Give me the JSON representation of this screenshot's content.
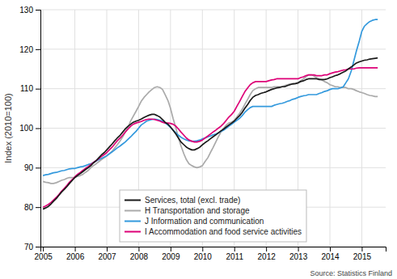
{
  "chart_data": {
    "type": "line",
    "ylabel": "Index (2010=100)",
    "annotations": [
      "Source: Statistics  Finland"
    ],
    "ylim": [
      70,
      130
    ],
    "xlim": [
      2004.92,
      2015.75
    ],
    "yticks": [
      70,
      80,
      90,
      100,
      110,
      120,
      130
    ],
    "xticks": [
      2005,
      2006,
      2007,
      2008,
      2009,
      2010,
      2011,
      2012,
      2013,
      2014,
      2015
    ],
    "grid": true,
    "legend": "bottom",
    "x": [
      2005.0,
      2005.08,
      2005.17,
      2005.25,
      2005.33,
      2005.42,
      2005.5,
      2005.58,
      2005.67,
      2005.75,
      2005.83,
      2005.92,
      2006.0,
      2006.08,
      2006.17,
      2006.25,
      2006.33,
      2006.42,
      2006.5,
      2006.58,
      2006.67,
      2006.75,
      2006.83,
      2006.92,
      2007.0,
      2007.08,
      2007.17,
      2007.25,
      2007.33,
      2007.42,
      2007.5,
      2007.58,
      2007.67,
      2007.75,
      2007.83,
      2007.92,
      2008.0,
      2008.08,
      2008.17,
      2008.25,
      2008.33,
      2008.42,
      2008.5,
      2008.58,
      2008.67,
      2008.75,
      2008.83,
      2008.92,
      2009.0,
      2009.08,
      2009.17,
      2009.25,
      2009.33,
      2009.42,
      2009.5,
      2009.58,
      2009.67,
      2009.75,
      2009.83,
      2009.92,
      2010.0,
      2010.08,
      2010.17,
      2010.25,
      2010.33,
      2010.42,
      2010.5,
      2010.58,
      2010.67,
      2010.75,
      2010.83,
      2010.92,
      2011.0,
      2011.08,
      2011.17,
      2011.25,
      2011.33,
      2011.42,
      2011.5,
      2011.58,
      2011.67,
      2011.75,
      2011.83,
      2011.92,
      2012.0,
      2012.08,
      2012.17,
      2012.25,
      2012.33,
      2012.42,
      2012.5,
      2012.58,
      2012.67,
      2012.75,
      2012.83,
      2012.92,
      2013.0,
      2013.08,
      2013.17,
      2013.25,
      2013.33,
      2013.42,
      2013.5,
      2013.58,
      2013.67,
      2013.75,
      2013.83,
      2013.92,
      2014.0,
      2014.08,
      2014.17,
      2014.25,
      2014.33,
      2014.42,
      2014.5,
      2014.58,
      2014.67,
      2014.75,
      2014.83,
      2014.92,
      2015.0,
      2015.08,
      2015.17,
      2015.25,
      2015.33,
      2015.42,
      2015.5
    ],
    "series": [
      {
        "name": "Services, total  (excl. trade)",
        "color": "#1a1a1a",
        "values": [
          79.5,
          79.8,
          80.2,
          80.8,
          81.5,
          82.2,
          83.0,
          83.8,
          84.5,
          85.2,
          86.0,
          86.8,
          87.5,
          88.0,
          88.5,
          89.0,
          89.5,
          90.0,
          90.5,
          91.2,
          91.8,
          92.5,
          93.2,
          93.8,
          94.5,
          95.2,
          96.0,
          96.8,
          97.5,
          98.2,
          99.0,
          99.8,
          100.5,
          101.0,
          101.5,
          101.8,
          102.0,
          102.3,
          102.7,
          103.0,
          103.3,
          103.5,
          103.5,
          103.2,
          102.8,
          102.2,
          101.5,
          101.0,
          100.3,
          99.5,
          98.5,
          97.5,
          96.5,
          95.8,
          95.2,
          94.8,
          94.5,
          94.5,
          94.8,
          95.2,
          95.8,
          96.3,
          96.8,
          97.3,
          97.8,
          98.3,
          98.8,
          99.3,
          99.8,
          100.3,
          100.8,
          101.3,
          101.8,
          102.5,
          103.2,
          104.0,
          105.0,
          106.0,
          107.0,
          107.8,
          108.3,
          108.5,
          108.8,
          109.0,
          109.2,
          109.5,
          109.8,
          110.0,
          110.2,
          110.3,
          110.5,
          110.5,
          110.8,
          111.0,
          111.2,
          111.3,
          111.5,
          111.8,
          112.0,
          112.3,
          112.5,
          112.5,
          112.5,
          112.5,
          112.3,
          112.3,
          112.3,
          112.5,
          112.8,
          113.0,
          113.3,
          113.5,
          113.8,
          114.2,
          114.5,
          115.0,
          115.5,
          116.0,
          116.5,
          116.8,
          117.0,
          117.2,
          117.3,
          117.5,
          117.6,
          117.7,
          117.8
        ]
      },
      {
        "name": "H Transportation and storage",
        "color": "#aaaaaa",
        "values": [
          86.5,
          86.3,
          86.2,
          86.0,
          86.0,
          86.2,
          86.5,
          86.8,
          87.0,
          87.3,
          87.5,
          87.5,
          87.5,
          87.8,
          88.0,
          88.3,
          88.8,
          89.3,
          90.0,
          90.5,
          91.0,
          91.5,
          92.0,
          92.5,
          93.0,
          93.5,
          94.2,
          95.0,
          95.8,
          96.8,
          97.8,
          99.0,
          100.3,
          101.8,
          103.0,
          104.3,
          105.5,
          106.8,
          107.8,
          108.5,
          109.2,
          109.8,
          110.3,
          110.5,
          110.3,
          109.8,
          108.5,
          107.0,
          105.0,
          102.5,
          100.0,
          97.5,
          95.5,
          93.5,
          92.0,
          91.0,
          90.5,
          90.2,
          90.0,
          90.2,
          90.5,
          91.5,
          92.5,
          93.8,
          95.0,
          96.5,
          97.8,
          99.0,
          100.0,
          100.8,
          101.3,
          101.5,
          102.0,
          102.8,
          103.8,
          104.8,
          106.0,
          107.3,
          108.5,
          109.5,
          110.0,
          110.3,
          110.3,
          110.3,
          110.3,
          110.3,
          110.3,
          110.5,
          110.5,
          110.5,
          110.5,
          110.8,
          111.0,
          111.2,
          111.3,
          111.3,
          111.3,
          112.0,
          112.5,
          113.0,
          113.5,
          113.5,
          113.2,
          112.8,
          112.5,
          112.2,
          111.8,
          111.5,
          111.0,
          110.8,
          110.5,
          110.5,
          110.3,
          110.3,
          110.3,
          110.0,
          110.0,
          109.8,
          109.5,
          109.2,
          109.0,
          108.8,
          108.5,
          108.3,
          108.2,
          108.0,
          108.0
        ]
      },
      {
        "name": "J Information and communication",
        "color": "#3399dd",
        "values": [
          88.0,
          88.2,
          88.3,
          88.5,
          88.7,
          88.8,
          89.0,
          89.2,
          89.3,
          89.5,
          89.7,
          89.8,
          89.8,
          90.0,
          90.2,
          90.3,
          90.5,
          90.8,
          91.0,
          91.3,
          91.7,
          92.0,
          92.3,
          92.7,
          93.0,
          93.5,
          94.0,
          94.5,
          95.0,
          95.5,
          96.0,
          96.5,
          97.2,
          97.8,
          98.5,
          99.2,
          100.0,
          100.8,
          101.3,
          101.8,
          102.0,
          102.2,
          102.3,
          102.2,
          102.0,
          101.8,
          101.3,
          100.8,
          100.2,
          99.5,
          98.8,
          98.2,
          97.7,
          97.3,
          97.0,
          96.8,
          96.7,
          96.7,
          96.8,
          97.0,
          97.3,
          97.5,
          97.8,
          98.0,
          98.3,
          98.5,
          98.8,
          99.2,
          99.5,
          100.0,
          100.5,
          101.0,
          101.5,
          102.0,
          102.5,
          103.2,
          104.0,
          104.7,
          105.2,
          105.5,
          105.5,
          105.5,
          105.5,
          105.5,
          105.5,
          105.5,
          105.5,
          105.8,
          106.0,
          106.2,
          106.3,
          106.5,
          106.8,
          107.0,
          107.3,
          107.5,
          107.8,
          108.0,
          108.2,
          108.3,
          108.5,
          108.5,
          108.5,
          108.5,
          108.8,
          109.0,
          109.3,
          109.5,
          109.8,
          110.0,
          110.0,
          110.0,
          110.2,
          110.5,
          111.5,
          112.5,
          114.5,
          117.0,
          119.5,
          122.0,
          124.5,
          125.8,
          126.5,
          127.0,
          127.3,
          127.5,
          127.5
        ]
      },
      {
        "name": "I Accommodation and food service activities",
        "color": "#dd0077",
        "values": [
          80.0,
          80.3,
          80.7,
          81.2,
          81.8,
          82.5,
          83.2,
          84.0,
          84.8,
          85.5,
          86.3,
          87.0,
          87.7,
          88.3,
          88.8,
          89.3,
          89.8,
          90.3,
          90.8,
          91.3,
          91.8,
          92.3,
          92.8,
          93.3,
          93.8,
          94.5,
          95.2,
          96.0,
          96.8,
          97.5,
          98.2,
          99.0,
          99.8,
          100.5,
          101.0,
          101.3,
          101.5,
          101.7,
          102.0,
          102.2,
          102.3,
          102.3,
          102.2,
          102.0,
          101.8,
          101.5,
          101.3,
          101.3,
          101.2,
          101.0,
          100.5,
          99.8,
          99.0,
          98.2,
          97.5,
          97.0,
          96.7,
          96.5,
          96.5,
          96.7,
          97.0,
          97.5,
          98.0,
          98.5,
          99.0,
          99.5,
          100.0,
          100.5,
          101.2,
          102.0,
          102.8,
          103.5,
          104.3,
          105.5,
          106.8,
          108.0,
          109.2,
          110.2,
          111.0,
          111.5,
          111.8,
          111.8,
          111.8,
          111.8,
          111.8,
          112.0,
          112.2,
          112.3,
          112.5,
          112.5,
          112.5,
          112.5,
          112.5,
          112.5,
          112.5,
          112.5,
          112.5,
          112.8,
          113.0,
          113.3,
          113.5,
          113.5,
          113.5,
          113.3,
          113.3,
          113.3,
          113.5,
          113.5,
          113.8,
          114.0,
          114.2,
          114.3,
          114.5,
          114.7,
          114.8,
          115.0,
          115.0,
          115.0,
          115.2,
          115.3,
          115.3,
          115.3,
          115.3,
          115.3,
          115.3,
          115.3,
          115.3
        ]
      }
    ]
  }
}
